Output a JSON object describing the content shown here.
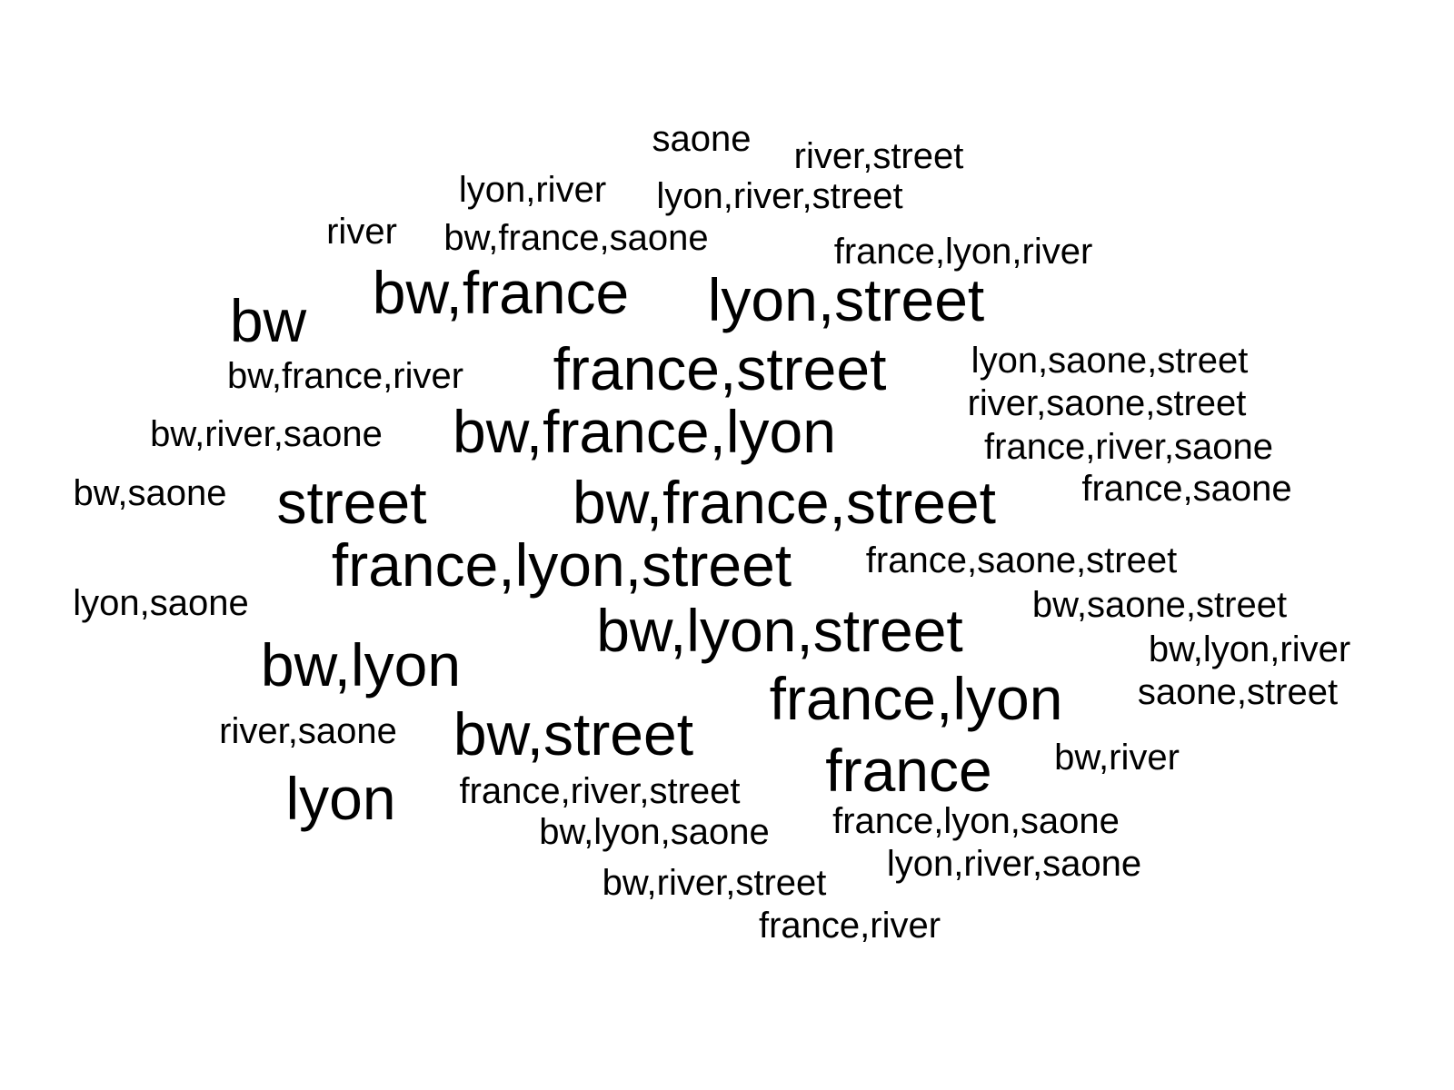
{
  "words": [
    {
      "text": "saone",
      "weight": 1
    },
    {
      "text": "river,street",
      "weight": 1
    },
    {
      "text": "lyon,river",
      "weight": 1
    },
    {
      "text": "lyon,river,street",
      "weight": 1
    },
    {
      "text": "river",
      "weight": 1
    },
    {
      "text": "bw,france,saone",
      "weight": 1
    },
    {
      "text": "france,lyon,river",
      "weight": 1
    },
    {
      "text": "bw,france",
      "weight": 2
    },
    {
      "text": "lyon,street",
      "weight": 2
    },
    {
      "text": "bw",
      "weight": 2
    },
    {
      "text": "bw,france,river",
      "weight": 1
    },
    {
      "text": "france,street",
      "weight": 2
    },
    {
      "text": "lyon,saone,street",
      "weight": 1
    },
    {
      "text": "river,saone,street",
      "weight": 1
    },
    {
      "text": "bw,river,saone",
      "weight": 1
    },
    {
      "text": "bw,france,lyon",
      "weight": 2
    },
    {
      "text": "france,river,saone",
      "weight": 1
    },
    {
      "text": "france,saone",
      "weight": 1
    },
    {
      "text": "bw,saone",
      "weight": 1
    },
    {
      "text": "street",
      "weight": 2
    },
    {
      "text": "bw,france,street",
      "weight": 2
    },
    {
      "text": "france,lyon,street",
      "weight": 2
    },
    {
      "text": "france,saone,street",
      "weight": 1
    },
    {
      "text": "lyon,saone",
      "weight": 1
    },
    {
      "text": "bw,saone,street",
      "weight": 1
    },
    {
      "text": "bw,lyon,street",
      "weight": 2
    },
    {
      "text": "bw,lyon,river",
      "weight": 1
    },
    {
      "text": "bw,lyon",
      "weight": 2
    },
    {
      "text": "france,lyon",
      "weight": 2
    },
    {
      "text": "saone,street",
      "weight": 1
    },
    {
      "text": "river,saone",
      "weight": 1
    },
    {
      "text": "bw,street",
      "weight": 2
    },
    {
      "text": "bw,river",
      "weight": 1
    },
    {
      "text": "france",
      "weight": 2
    },
    {
      "text": "lyon",
      "weight": 2
    },
    {
      "text": "france,river,street",
      "weight": 1
    },
    {
      "text": "bw,lyon,saone",
      "weight": 1
    },
    {
      "text": "france,lyon,saone",
      "weight": 1
    },
    {
      "text": "lyon,river,saone",
      "weight": 1
    },
    {
      "text": "bw,river,street",
      "weight": 1
    },
    {
      "text": "france,river",
      "weight": 1
    }
  ],
  "text_color": "#000000",
  "background_color": "#ffffff"
}
